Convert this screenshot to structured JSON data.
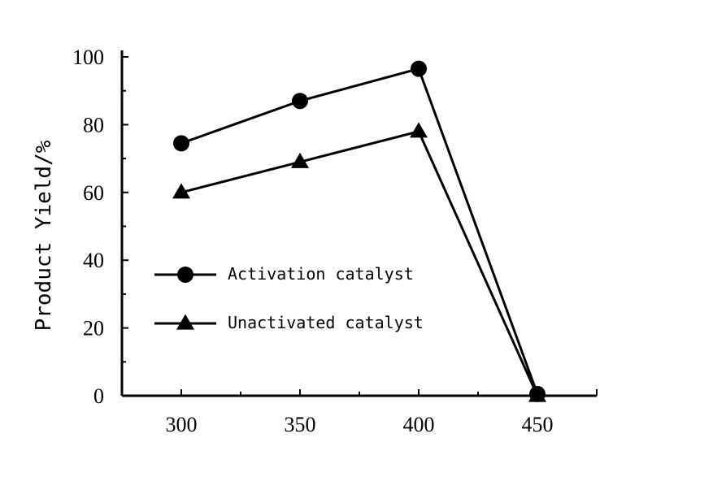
{
  "chart_data": {
    "type": "line",
    "title": "",
    "xlabel": "",
    "ylabel": "Product Yield/%",
    "x": [
      300,
      350,
      400,
      450
    ],
    "xticks": [
      "300",
      "350",
      "400",
      "450"
    ],
    "xlim": [
      275,
      475
    ],
    "ylim": [
      0,
      100
    ],
    "yticks": [
      "0",
      "20",
      "40",
      "60",
      "80",
      "100"
    ],
    "grid": false,
    "legend_position": "center-left",
    "series": [
      {
        "name": "Activation catalyst",
        "marker": "circle",
        "color": "#000000",
        "values": [
          74.5,
          87,
          96.5,
          0.5
        ]
      },
      {
        "name": "Unactivated catalyst",
        "marker": "triangle",
        "color": "#000000",
        "values": [
          60,
          69,
          78,
          0
        ]
      }
    ]
  }
}
